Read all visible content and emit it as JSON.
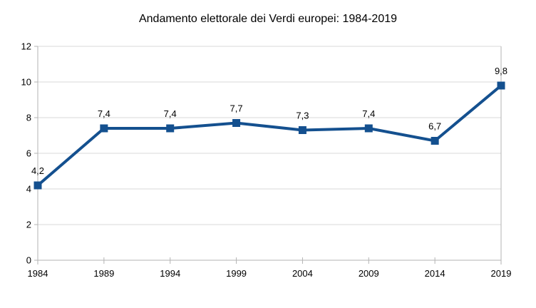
{
  "page": {
    "background_color": "#ffffff"
  },
  "chart_data": {
    "type": "line",
    "title": "Andamento elettorale dei Verdi europei: 1984-2019",
    "categories": [
      "1984",
      "1989",
      "1994",
      "1999",
      "2004",
      "2009",
      "2014",
      "2019"
    ],
    "values": [
      4.2,
      7.4,
      7.4,
      7.7,
      7.3,
      7.4,
      6.7,
      9.8
    ],
    "value_labels": [
      "4,2",
      "7,4",
      "7,4",
      "7,7",
      "7,3",
      "7,4",
      "6,7",
      "9,8"
    ],
    "xlabel": "",
    "ylabel": "",
    "ylim": [
      0,
      12
    ],
    "ytick_step": 2,
    "ytick_labels": [
      "0",
      "2",
      "4",
      "6",
      "8",
      "10",
      "12"
    ],
    "grid": "horizontal",
    "legend": "none",
    "marker": "square",
    "colors": {
      "line": "#14508f",
      "marker": "#14508f",
      "grid": "#d9d9d9",
      "axis": "#b3b3b3",
      "text": "#000000"
    }
  }
}
